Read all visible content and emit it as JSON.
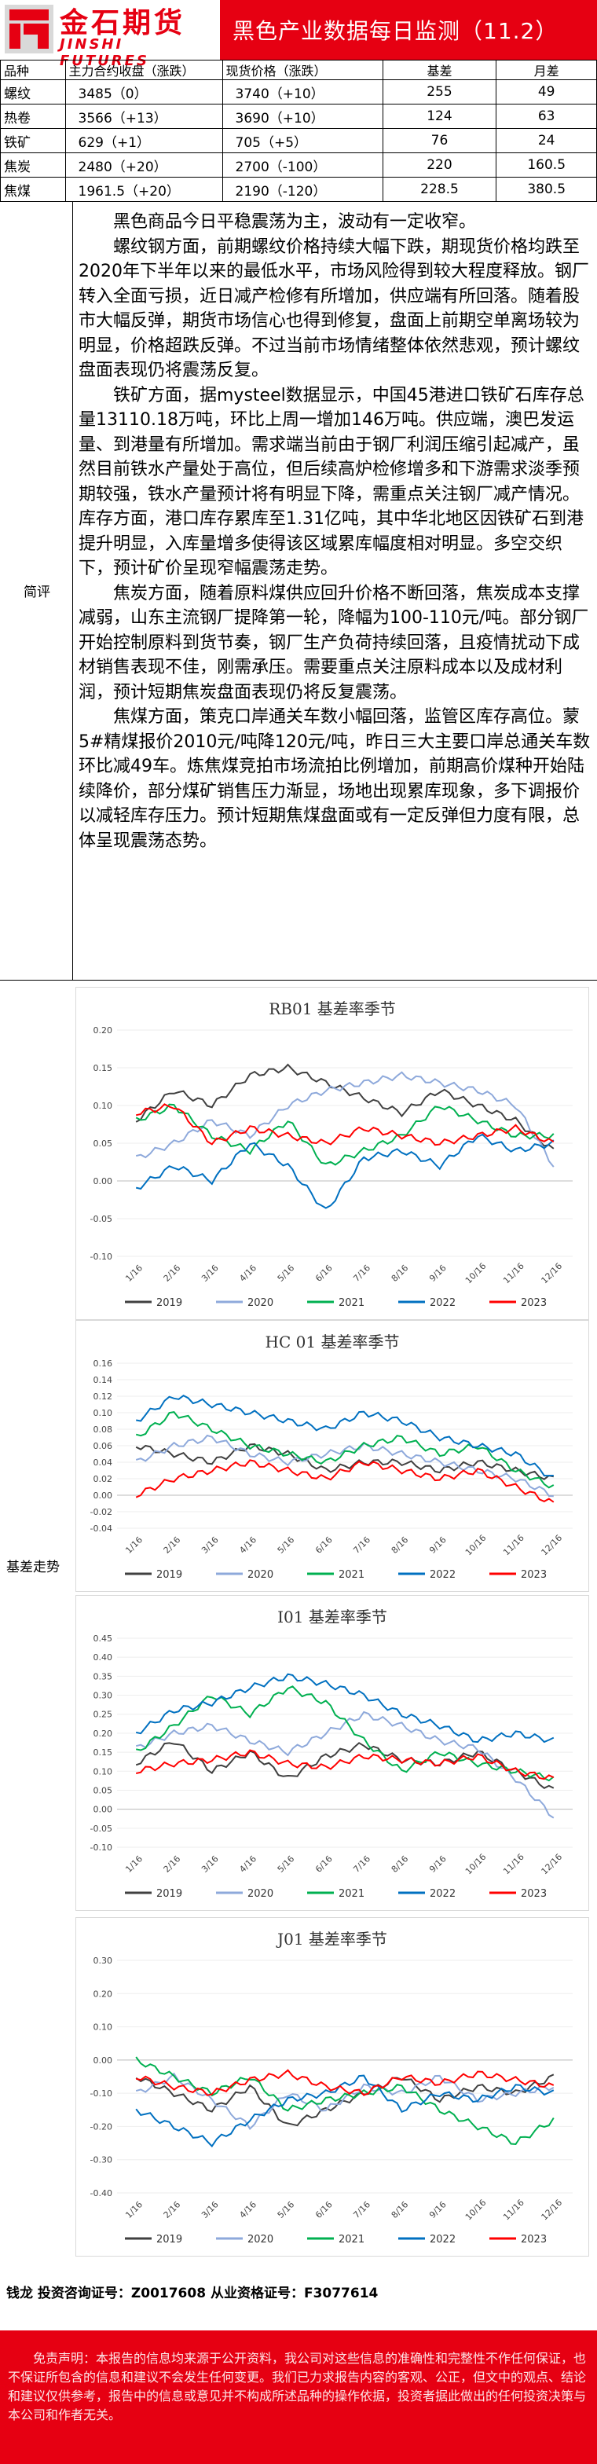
{
  "header": {
    "logo_cn": "金石期货",
    "logo_en": "JINSHI FUTURES",
    "title": "黑色产业数据每日监测（11.2）"
  },
  "table": {
    "headers": [
      "品种",
      "主力合约收盘（涨跌）",
      "现货价格（涨跌）",
      "基差",
      "月差"
    ],
    "rows": [
      [
        "螺纹",
        "3485（0）",
        "3740（+10）",
        "255",
        "49"
      ],
      [
        "热卷",
        "3566（+13）",
        "3690（+10）",
        "124",
        "63"
      ],
      [
        "铁矿",
        "629（+1）",
        "705（+5）",
        "76",
        "24"
      ],
      [
        "焦炭",
        "2480（+20）",
        "2700（-100）",
        "220",
        "160.5"
      ],
      [
        "焦煤",
        "1961.5（+20）",
        "2190（-120）",
        "228.5",
        "380.5"
      ]
    ]
  },
  "commentary": {
    "label": "简评",
    "paragraphs": [
      "黑色商品今日平稳震荡为主，波动有一定收窄。",
      "螺纹钢方面，前期螺纹价格持续大幅下跌，期现货价格均跌至2020年下半年以来的最低水平，市场风险得到较大程度释放。钢厂转入全面亏损，近日减产检修有所增加，供应端有所回落。随着股市大幅反弹，期货市场信心也得到修复，盘面上前期空单离场较为明显，价格超跌反弹。不过当前市场情绪整体依然悲观，预计螺纹盘面表现仍将震荡反复。",
      "铁矿方面，据mysteel数据显示，中国45港进口铁矿石库存总量13110.18万吨，环比上周一增加146万吨。供应端，澳巴发运量、到港量有所增加。需求端当前由于钢厂利润压缩引起减产，虽然目前铁水产量处于高位，但后续高炉检修增多和下游需求淡季预期较强，铁水产量预计将有明显下降，需重点关注钢厂减产情况。库存方面，港口库存累库至1.31亿吨，其中华北地区因铁矿石到港提升明显，入库量增多使得该区域累库幅度相对明显。多空交织下，预计矿价呈现窄幅震荡走势。",
      "焦炭方面，随着原料煤供应回升价格不断回落，焦炭成本支撑减弱，山东主流钢厂提降第一轮，降幅为100-110元/吨。部分钢厂开始控制原料到货节奏，钢厂生产负荷持续回落，且疫情扰动下成材销售表现不佳，刚需承压。需要重点关注原料成本以及成材利润，预计短期焦炭盘面表现仍将反复震荡。",
      "焦煤方面，策克口岸通关车数小幅回落，监管区库存高位。蒙5#精煤报价2010元/吨降120元/吨，昨日三大主要口岸总通关车数环比减49车。炼焦煤竞拍市场流拍比例增加，前期高价煤种开始陆续降价，部分煤矿销售压力渐显，场地出现累库现象，多下调报价以减轻库存压力。预计短期焦煤盘面或有一定反弹但力度有限，总体呈现震荡态势。"
    ]
  },
  "basis_section_label": "基差走势",
  "colors": {
    "brand_red": "#e60012",
    "y2019": "#404040",
    "y2020": "#8ea9db",
    "y2021": "#00b050",
    "y2022": "#0070c0",
    "y2023": "#ff0000"
  },
  "chart_data": [
    {
      "type": "line",
      "title": "RB01 基差率季节",
      "xlabel": "",
      "ylabel": "",
      "x": [
        "1/16",
        "2/16",
        "3/16",
        "4/16",
        "5/16",
        "6/16",
        "7/16",
        "8/16",
        "9/16",
        "10/16",
        "11/16",
        "12/16"
      ],
      "ylim": [
        -0.1,
        0.2
      ],
      "yticks": [
        "0.20",
        "0.15",
        "0.10",
        "0.05",
        "0.00",
        "-0.05",
        "-0.10"
      ],
      "legend_position": "bottom",
      "series": [
        {
          "name": "2019",
          "values": [
            0.08,
            0.12,
            0.1,
            0.14,
            0.15,
            0.13,
            0.11,
            0.09,
            0.12,
            0.1,
            0.08,
            0.04
          ]
        },
        {
          "name": "2020",
          "values": [
            0.03,
            0.05,
            0.08,
            0.06,
            0.1,
            0.12,
            0.13,
            0.14,
            0.13,
            0.12,
            0.1,
            0.02
          ]
        },
        {
          "name": "2021",
          "values": [
            0.08,
            0.1,
            0.06,
            0.04,
            0.08,
            0.02,
            0.04,
            0.06,
            0.1,
            0.08,
            0.06,
            0.06
          ]
        },
        {
          "name": "2022",
          "values": [
            -0.01,
            0.02,
            0.0,
            0.05,
            0.02,
            -0.04,
            0.03,
            0.04,
            0.02,
            0.06,
            0.04,
            0.05
          ]
        },
        {
          "name": "2023",
          "values": [
            0.09,
            0.1,
            0.05,
            0.07,
            0.06,
            0.05,
            0.07,
            0.06,
            0.05,
            0.06,
            0.07,
            0.05
          ]
        }
      ]
    },
    {
      "type": "line",
      "title": "HC 01 基差率季节",
      "xlabel": "",
      "ylabel": "",
      "x": [
        "1/16",
        "2/16",
        "3/16",
        "4/16",
        "5/16",
        "6/16",
        "7/16",
        "8/16",
        "9/16",
        "10/16",
        "11/16",
        "12/16"
      ],
      "ylim": [
        -0.04,
        0.16
      ],
      "yticks": [
        "0.16",
        "0.14",
        "0.12",
        "0.10",
        "0.08",
        "0.06",
        "0.04",
        "0.02",
        "0.00",
        "-0.02",
        "-0.04"
      ],
      "legend_position": "bottom",
      "series": [
        {
          "name": "2019",
          "values": [
            0.06,
            0.05,
            0.04,
            0.06,
            0.05,
            0.03,
            0.04,
            0.04,
            0.03,
            0.04,
            0.03,
            0.02
          ]
        },
        {
          "name": "2020",
          "values": [
            0.04,
            0.06,
            0.07,
            0.05,
            0.04,
            0.05,
            0.06,
            0.05,
            0.04,
            0.03,
            0.02,
            0.0
          ]
        },
        {
          "name": "2021",
          "values": [
            0.07,
            0.1,
            0.08,
            0.06,
            0.05,
            0.04,
            0.06,
            0.07,
            0.05,
            0.06,
            0.03,
            0.01
          ]
        },
        {
          "name": "2022",
          "values": [
            0.09,
            0.12,
            0.11,
            0.1,
            0.09,
            0.08,
            0.1,
            0.09,
            0.07,
            0.06,
            0.05,
            0.02
          ]
        },
        {
          "name": "2023",
          "values": [
            0.0,
            0.02,
            0.03,
            0.04,
            0.03,
            0.02,
            0.04,
            0.03,
            0.02,
            0.03,
            0.01,
            -0.01
          ]
        }
      ]
    },
    {
      "type": "line",
      "title": "I01 基差率季节",
      "xlabel": "",
      "ylabel": "",
      "x": [
        "1/16",
        "2/16",
        "3/16",
        "4/16",
        "5/16",
        "6/16",
        "7/16",
        "8/16",
        "9/16",
        "10/16",
        "11/16",
        "12/16"
      ],
      "ylim": [
        -0.1,
        0.45
      ],
      "yticks": [
        "0.45",
        "0.40",
        "0.35",
        "0.30",
        "0.25",
        "0.20",
        "0.15",
        "0.10",
        "0.05",
        "0.00",
        "-0.05",
        "-0.10"
      ],
      "legend_position": "bottom",
      "series": [
        {
          "name": "2019",
          "values": [
            0.12,
            0.18,
            0.1,
            0.15,
            0.08,
            0.14,
            0.17,
            0.13,
            0.12,
            0.15,
            0.1,
            0.05
          ]
        },
        {
          "name": "2020",
          "values": [
            0.16,
            0.2,
            0.22,
            0.18,
            0.15,
            0.2,
            0.25,
            0.22,
            0.18,
            0.16,
            0.08,
            -0.02
          ]
        },
        {
          "name": "2021",
          "values": [
            0.15,
            0.22,
            0.3,
            0.25,
            0.32,
            0.28,
            0.18,
            0.1,
            0.15,
            0.12,
            0.1,
            0.08
          ]
        },
        {
          "name": "2022",
          "values": [
            0.2,
            0.26,
            0.28,
            0.32,
            0.35,
            0.33,
            0.3,
            0.25,
            0.22,
            0.18,
            0.2,
            0.18
          ]
        },
        {
          "name": "2023",
          "values": [
            0.1,
            0.12,
            0.13,
            0.15,
            0.12,
            0.11,
            0.14,
            0.13,
            0.12,
            0.14,
            0.1,
            0.08
          ]
        }
      ]
    },
    {
      "type": "line",
      "title": "J01 基差率季节",
      "xlabel": "",
      "ylabel": "",
      "x": [
        "1/16",
        "2/16",
        "3/16",
        "4/16",
        "5/16",
        "6/16",
        "7/16",
        "8/16",
        "9/16",
        "10/16",
        "11/16",
        "12/16"
      ],
      "ylim": [
        -0.4,
        0.3
      ],
      "yticks": [
        "0.30",
        "0.20",
        "0.10",
        "0.00",
        "-0.10",
        "-0.20",
        "-0.30",
        "-0.40"
      ],
      "legend_position": "bottom",
      "series": [
        {
          "name": "2019",
          "values": [
            -0.05,
            -0.1,
            -0.15,
            -0.08,
            -0.2,
            -0.15,
            -0.1,
            -0.05,
            -0.12,
            -0.08,
            -0.1,
            -0.05
          ]
        },
        {
          "name": "2020",
          "values": [
            -0.1,
            -0.05,
            -0.12,
            -0.2,
            -0.1,
            -0.15,
            -0.08,
            -0.1,
            -0.05,
            -0.12,
            -0.1,
            -0.08
          ]
        },
        {
          "name": "2021",
          "values": [
            0.0,
            -0.05,
            -0.1,
            -0.05,
            -0.15,
            -0.12,
            -0.1,
            -0.08,
            -0.15,
            -0.2,
            -0.25,
            -0.18
          ]
        },
        {
          "name": "2022",
          "values": [
            -0.15,
            -0.2,
            -0.25,
            -0.18,
            -0.12,
            -0.1,
            -0.05,
            -0.15,
            -0.1,
            -0.12,
            -0.08,
            -0.1
          ]
        },
        {
          "name": "2023",
          "values": [
            -0.05,
            -0.08,
            -0.1,
            -0.06,
            -0.04,
            -0.08,
            -0.1,
            -0.05,
            -0.07,
            -0.04,
            -0.06,
            -0.08
          ]
        }
      ]
    }
  ],
  "footer": {
    "signature": "钱龙 投资咨询证号：Z0017608 从业资格证号：F3077614",
    "disclaimer": "免责声明：本报告的信息均来源于公开资料，我公司对这些信息的准确性和完整性不作任何保证，也不保证所包含的信息和建议不会发生任何变更。我们已力求报告内容的客观、公正，但文中的观点、结论和建议仅供参考，报告中的信息或意见并不构成所述品种的操作依据，投资者据此做出的任何投资决策与本公司和作者无关。"
  }
}
